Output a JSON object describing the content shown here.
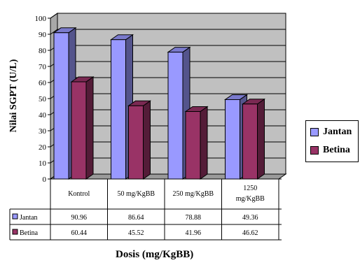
{
  "chart_data": {
    "type": "bar",
    "title": "",
    "xlabel": "Dosis (mg/KgBB)",
    "ylabel": "Nilai SGPT (U/L)",
    "ylim": [
      0,
      100
    ],
    "yticks": [
      0,
      10,
      20,
      30,
      40,
      50,
      60,
      70,
      80,
      90,
      100
    ],
    "grid": true,
    "legend_position": "right",
    "categories": [
      "Kontrol",
      "50 mg/KgBB",
      "250 mg/KgBB",
      "1250 mg/KgBB"
    ],
    "series": [
      {
        "name": "Jantan",
        "color": "#9999ff",
        "values": [
          90.96,
          86.64,
          78.88,
          49.36
        ]
      },
      {
        "name": "Betina",
        "color": "#993366",
        "values": [
          60.44,
          45.52,
          41.96,
          46.62
        ]
      }
    ],
    "data_table": true
  }
}
